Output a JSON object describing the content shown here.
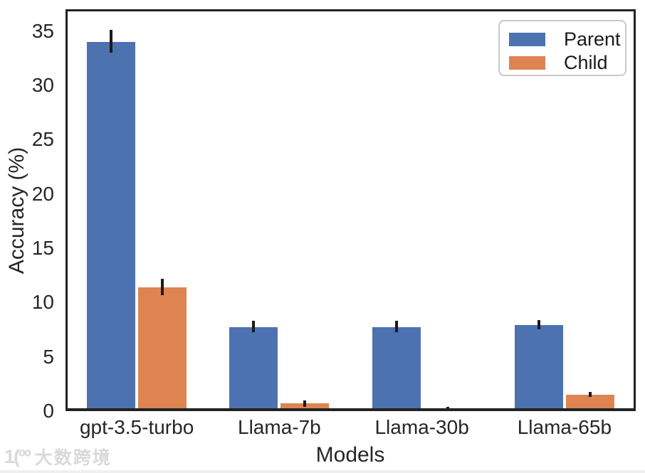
{
  "chart_data": {
    "type": "bar",
    "title": "",
    "xlabel": "Models",
    "ylabel": "Accuracy (%)",
    "categories": [
      "gpt-3.5-turbo",
      "Llama-7b",
      "Llama-30b",
      "Llama-65b"
    ],
    "series": [
      {
        "name": "Parent",
        "color": "#4C72B0",
        "values": [
          34.0,
          7.7,
          7.7,
          7.9
        ],
        "error_bars": [
          [
            33.0,
            35.1
          ],
          [
            7.3,
            8.3
          ],
          [
            7.3,
            8.3
          ],
          [
            7.5,
            8.4
          ]
        ]
      },
      {
        "name": "Child",
        "color": "#DD8452",
        "values": [
          11.4,
          0.7,
          0.2,
          1.5
        ],
        "error_bars": [
          [
            10.7,
            12.2
          ],
          [
            0.4,
            1.0
          ],
          [
            0.1,
            0.4
          ],
          [
            1.3,
            1.8
          ]
        ]
      }
    ],
    "ylim": [
      0,
      37
    ],
    "yticks": [
      0,
      5,
      10,
      15,
      20,
      25,
      30,
      35
    ],
    "grid": false,
    "legend": {
      "position": "top-right",
      "entries": [
        "Parent",
        "Child"
      ]
    },
    "error_bar_color": "#1b1b1b",
    "spine_color": "#222222"
  },
  "watermark": {
    "logo": "1(ºº",
    "text": "大数跨境"
  }
}
